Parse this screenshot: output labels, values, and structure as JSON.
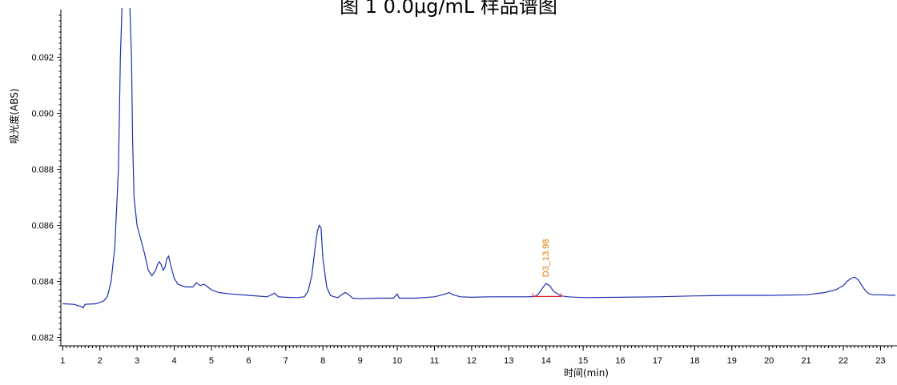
{
  "chart_data": {
    "type": "line",
    "title": "图 1 0.0μg/mL 样品谱图",
    "xlabel": "时间(min)",
    "ylabel": "吸光度(ABS)",
    "xlim": [
      0.95,
      23.4
    ],
    "ylim": [
      0.0817,
      0.0937
    ],
    "x_ticks": [
      1,
      2,
      3,
      4,
      5,
      6,
      7,
      8,
      9,
      10,
      11,
      12,
      13,
      14,
      15,
      16,
      17,
      18,
      19,
      20,
      21,
      22,
      23
    ],
    "y_ticks": [
      0.082,
      0.084,
      0.086,
      0.088,
      0.09,
      0.092
    ],
    "y_tick_labels": [
      "0.082",
      "0.084",
      "0.086",
      "0.088",
      "0.090",
      "0.092"
    ],
    "grid": false,
    "colors": {
      "trace": "#1f2fb0",
      "baseline": "#e0202a",
      "annotation": "#e07b00"
    },
    "series": [
      {
        "x": [
          1.0,
          1.3,
          1.5,
          1.55,
          1.6,
          1.9,
          2.1,
          2.2,
          2.3,
          2.4,
          2.5,
          2.55,
          2.6,
          2.65,
          2.8,
          2.85,
          2.88,
          2.92,
          3.0,
          3.1,
          3.2,
          3.3,
          3.4,
          3.5,
          3.55,
          3.6,
          3.65,
          3.7,
          3.75,
          3.8,
          3.85,
          3.9,
          4.0,
          4.1,
          4.2,
          4.3,
          4.5,
          4.6,
          4.7,
          4.8,
          4.9,
          5.0,
          5.2,
          5.5,
          6.0,
          6.5,
          6.7,
          6.8,
          7.0,
          7.3,
          7.5,
          7.6,
          7.7,
          7.8,
          7.85,
          7.9,
          7.95,
          8.0,
          8.1,
          8.2,
          8.3,
          8.4,
          8.5,
          8.6,
          8.7,
          8.8,
          9.0,
          9.5,
          9.9,
          10.0,
          10.05,
          10.1,
          10.5,
          11.0,
          11.3,
          11.4,
          11.5,
          11.7,
          12.0,
          12.5,
          13.0,
          13.5,
          13.7,
          13.8,
          13.9,
          14.0,
          14.1,
          14.2,
          14.4,
          14.6,
          15.0,
          16.0,
          17.0,
          18.0,
          19.0,
          20.0,
          21.0,
          21.5,
          21.8,
          22.0,
          22.1,
          22.2,
          22.3,
          22.4,
          22.5,
          22.6,
          22.7,
          22.8,
          23.0,
          23.4
        ],
        "y": [
          0.0832,
          0.08318,
          0.0831,
          0.08305,
          0.08318,
          0.0832,
          0.0833,
          0.08345,
          0.084,
          0.0852,
          0.088,
          0.092,
          0.094,
          0.094,
          0.094,
          0.092,
          0.089,
          0.087,
          0.086,
          0.0855,
          0.085,
          0.0844,
          0.0842,
          0.0844,
          0.0846,
          0.0847,
          0.0846,
          0.0844,
          0.0845,
          0.0848,
          0.0849,
          0.0846,
          0.0841,
          0.0839,
          0.08385,
          0.0838,
          0.0838,
          0.08395,
          0.08385,
          0.0839,
          0.0838,
          0.0837,
          0.0836,
          0.08355,
          0.0835,
          0.08345,
          0.08358,
          0.08345,
          0.08343,
          0.08342,
          0.08345,
          0.08365,
          0.0842,
          0.0853,
          0.0858,
          0.086,
          0.0859,
          0.0848,
          0.0838,
          0.0835,
          0.08345,
          0.08342,
          0.08352,
          0.0836,
          0.08352,
          0.0834,
          0.08338,
          0.0834,
          0.0834,
          0.08355,
          0.0834,
          0.0834,
          0.0834,
          0.08345,
          0.08355,
          0.0836,
          0.08352,
          0.08345,
          0.08343,
          0.08345,
          0.08345,
          0.08345,
          0.08346,
          0.08355,
          0.08375,
          0.08392,
          0.08385,
          0.08365,
          0.08348,
          0.08345,
          0.08342,
          0.08343,
          0.08345,
          0.08348,
          0.0835,
          0.0835,
          0.08352,
          0.0836,
          0.0837,
          0.08385,
          0.084,
          0.0841,
          0.08415,
          0.08405,
          0.08385,
          0.08365,
          0.08355,
          0.08352,
          0.08352,
          0.0835
        ]
      }
    ],
    "peak_annotation": {
      "label": "D3_13.98",
      "x": 13.98,
      "y": 0.08392,
      "baseline_x": [
        13.65,
        14.4
      ],
      "baseline_y": 0.08346
    }
  }
}
